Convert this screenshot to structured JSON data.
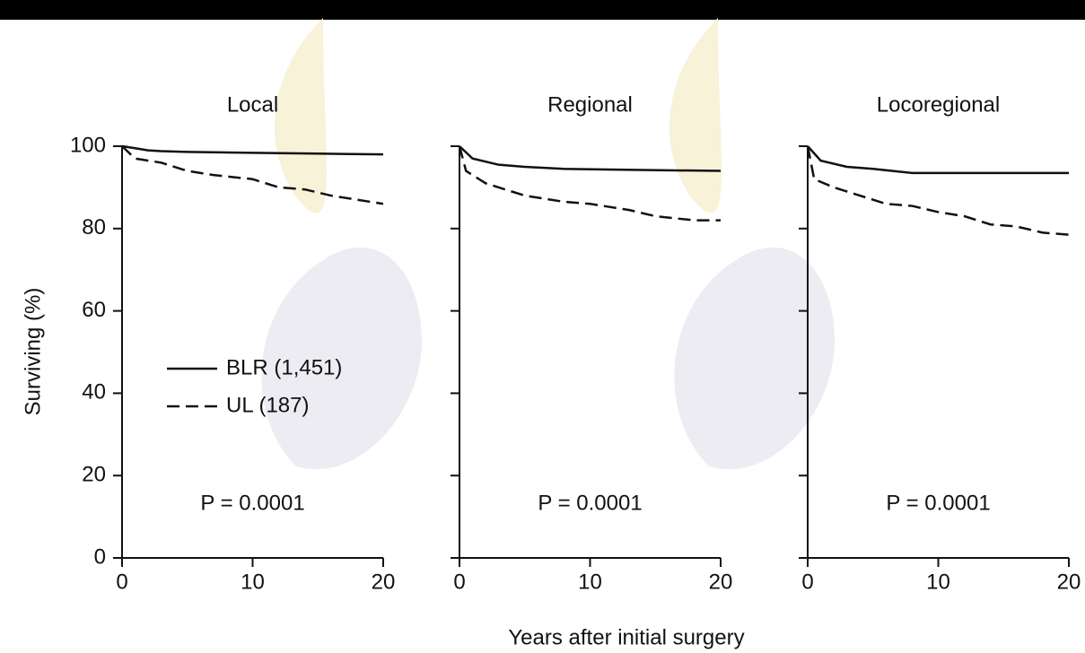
{
  "xlabel": "Years after initial surgery",
  "chart_data": [
    {
      "type": "line",
      "title": "Local",
      "ylabel": "Surviving (%)",
      "annotation": "P = 0.0001",
      "xlim": [
        0,
        20
      ],
      "xticks": [
        0,
        10,
        20
      ],
      "ylim": [
        0,
        100
      ],
      "yticks": [
        0,
        20,
        40,
        60,
        80,
        100
      ],
      "ytick_labels": true,
      "series": [
        {
          "name": "BLR (1,451)",
          "color": "#111111",
          "dash": false,
          "x": [
            0,
            1,
            2,
            3,
            5,
            10,
            15,
            20
          ],
          "values": [
            100,
            99.5,
            99,
            98.8,
            98.6,
            98.4,
            98.2,
            98
          ]
        },
        {
          "name": "UL (187)",
          "color": "#111111",
          "dash": true,
          "x": [
            0,
            1,
            3,
            5,
            7,
            10,
            12,
            14,
            16,
            18,
            20
          ],
          "values": [
            100,
            97,
            96,
            94,
            93,
            92,
            90,
            89.5,
            88,
            87,
            86
          ]
        }
      ]
    },
    {
      "type": "line",
      "title": "Regional",
      "annotation": "P = 0.0001",
      "xlim": [
        0,
        20
      ],
      "xticks": [
        0,
        10,
        20
      ],
      "ylim": [
        0,
        100
      ],
      "yticks": [
        0,
        20,
        40,
        60,
        80,
        100
      ],
      "ytick_labels": false,
      "series": [
        {
          "color": "#111111",
          "dash": false,
          "x": [
            0,
            1,
            3,
            5,
            8,
            12,
            20
          ],
          "values": [
            100,
            97,
            95.5,
            95,
            94.5,
            94.3,
            94
          ]
        },
        {
          "color": "#111111",
          "dash": true,
          "x": [
            0,
            0.5,
            2,
            5,
            8,
            10,
            13,
            15,
            18,
            20
          ],
          "values": [
            100,
            94,
            91,
            88,
            86.5,
            86,
            84.5,
            83,
            82,
            82
          ]
        }
      ]
    },
    {
      "type": "line",
      "title": "Locoregional",
      "annotation": "P = 0.0001",
      "xlim": [
        0,
        20
      ],
      "xticks": [
        0,
        10,
        20
      ],
      "ylim": [
        0,
        100
      ],
      "yticks": [
        0,
        20,
        40,
        60,
        80,
        100
      ],
      "ytick_labels": false,
      "series": [
        {
          "color": "#111111",
          "dash": false,
          "x": [
            0,
            1,
            3,
            5,
            8,
            12,
            20
          ],
          "values": [
            100,
            96.5,
            95,
            94.5,
            93.5,
            93.5,
            93.5
          ]
        },
        {
          "color": "#111111",
          "dash": true,
          "x": [
            0,
            0.5,
            2,
            4,
            6,
            8,
            10,
            12,
            14,
            16,
            18,
            20
          ],
          "values": [
            100,
            92,
            90,
            88,
            86,
            85.5,
            84,
            83,
            81,
            80.5,
            79,
            78.5
          ]
        }
      ]
    }
  ]
}
